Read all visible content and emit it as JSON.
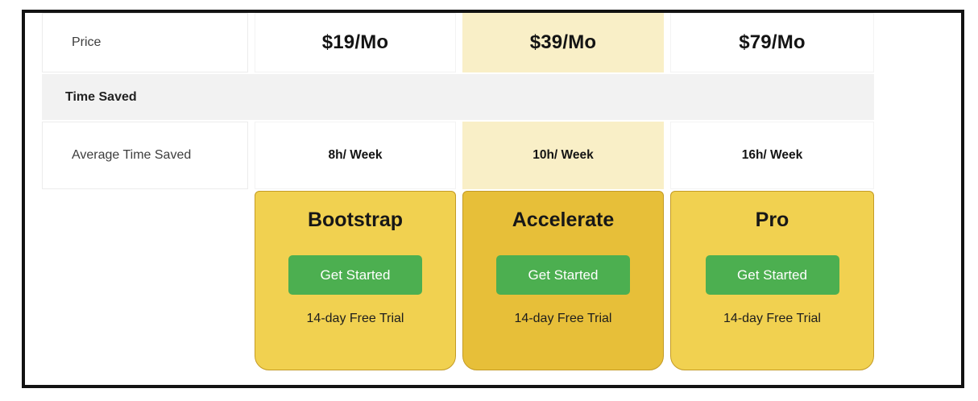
{
  "table": {
    "rows": {
      "price_label": "Price",
      "section_label": "Time Saved",
      "avg_label": "Average Time Saved"
    },
    "plans": [
      {
        "name": "Bootstrap",
        "price": "$19/Mo",
        "time_saved": "8h/ Week",
        "cta": "Get Started",
        "trial": "14-day Free Trial",
        "highlighted": false
      },
      {
        "name": "Accelerate",
        "price": "$39/Mo",
        "time_saved": "10h/ Week",
        "cta": "Get Started",
        "trial": "14-day Free Trial",
        "highlighted": true
      },
      {
        "name": "Pro",
        "price": "$79/Mo",
        "time_saved": "16h/ Week",
        "cta": "Get Started",
        "trial": "14-day Free Trial",
        "highlighted": false
      }
    ]
  },
  "colors": {
    "frame_border": "#121212",
    "section_row_bg": "#f2f2f2",
    "highlight_column_bg": "#f9efc7",
    "card_bg": "#f1d150",
    "card_bg_highlighted": "#e7bf39",
    "card_border": "#c49b25",
    "button_bg": "#4caf50",
    "button_text": "#ffffff"
  }
}
